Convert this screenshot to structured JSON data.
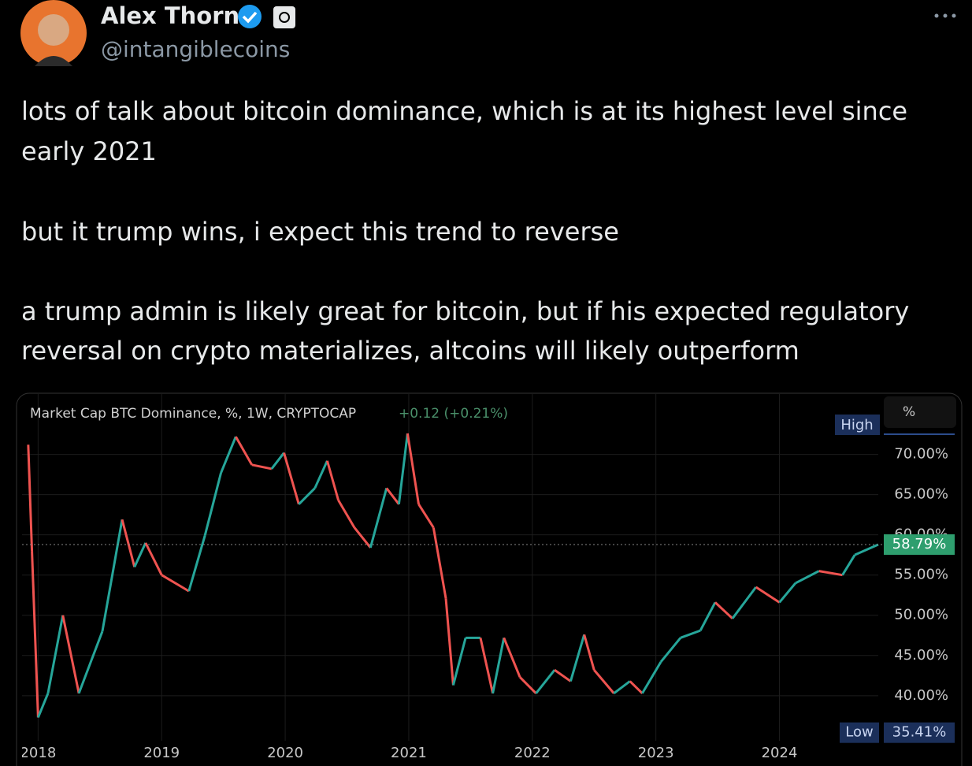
{
  "tweet": {
    "name": "Alex Thorn",
    "handle": "@intangiblecoins",
    "lines": [
      "lots of talk about bitcoin dominance, which is at its highest level since",
      "early 2021",
      "but it trump wins, i expect this trend to reverse",
      "a trump admin is likely great for bitcoin, but if his expected regulatory",
      "reversal on crypto materializes, altcoins will likely outperform"
    ]
  },
  "chart_data": {
    "type": "line",
    "title": "Market Cap BTC Dominance, %, 1W, CRYPTOCAP",
    "change": "+0.12 (+0.21%)",
    "y_unit": "%",
    "series": [
      {
        "name": "BTC Dominance",
        "up_color": "#26a69a",
        "down_color": "#ef5350",
        "x": [
          2017.92,
          2017.95,
          2018.0,
          2018.08,
          2018.2,
          2018.33,
          2018.52,
          2018.68,
          2018.78,
          2018.87,
          2019.0,
          2019.22,
          2019.35,
          2019.48,
          2019.6,
          2019.73,
          2019.89,
          2019.99,
          2020.11,
          2020.24,
          2020.34,
          2020.43,
          2020.56,
          2020.69,
          2020.82,
          2020.92,
          2020.99,
          2021.08,
          2021.2,
          2021.3,
          2021.36,
          2021.46,
          2021.58,
          2021.68,
          2021.77,
          2021.9,
          2022.03,
          2022.18,
          2022.31,
          2022.42,
          2022.5,
          2022.66,
          2022.79,
          2022.89,
          2023.04,
          2023.2,
          2023.36,
          2023.48,
          2023.62,
          2023.81,
          2024.0,
          2024.13,
          2024.32,
          2024.51,
          2024.61,
          2024.8
        ],
        "values": [
          71.2,
          58,
          37.3,
          40.3,
          50,
          40.3,
          48,
          61.9,
          56,
          59,
          55,
          53,
          59.9,
          67.7,
          72.2,
          68.7,
          68.2,
          70.2,
          63.8,
          65.8,
          69.2,
          64.3,
          60.9,
          58.4,
          65.8,
          63.8,
          72.6,
          63.8,
          60.9,
          52.1,
          41.3,
          47.2,
          47.2,
          40.3,
          47.2,
          42.3,
          40.3,
          43.2,
          41.8,
          47.6,
          43.2,
          40.3,
          41.8,
          40.3,
          44.2,
          47.2,
          48.1,
          51.6,
          49.6,
          53.5,
          51.6,
          54,
          55.5,
          55,
          57.5,
          58.79
        ]
      }
    ],
    "current": {
      "value": 58.79,
      "label": "58.79%"
    },
    "high_label": "High",
    "low_label": "Low",
    "low": {
      "value": 35.41,
      "label": "35.41%"
    },
    "xlim": [
      2017.87,
      2024.8
    ],
    "xticks": [
      2018,
      2019,
      2020,
      2021,
      2022,
      2023,
      2024
    ],
    "ylim": [
      34.4,
      77.5
    ],
    "yticks": [
      {
        "value": 40,
        "label": "40.00%"
      },
      {
        "value": 45,
        "label": "45.00%"
      },
      {
        "value": 50,
        "label": "50.00%"
      },
      {
        "value": 55,
        "label": "55.00%"
      },
      {
        "value": 60,
        "label": "60.00%"
      },
      {
        "value": 65,
        "label": "65.00%"
      },
      {
        "value": 70,
        "label": "70.00%"
      }
    ],
    "grid": true
  }
}
